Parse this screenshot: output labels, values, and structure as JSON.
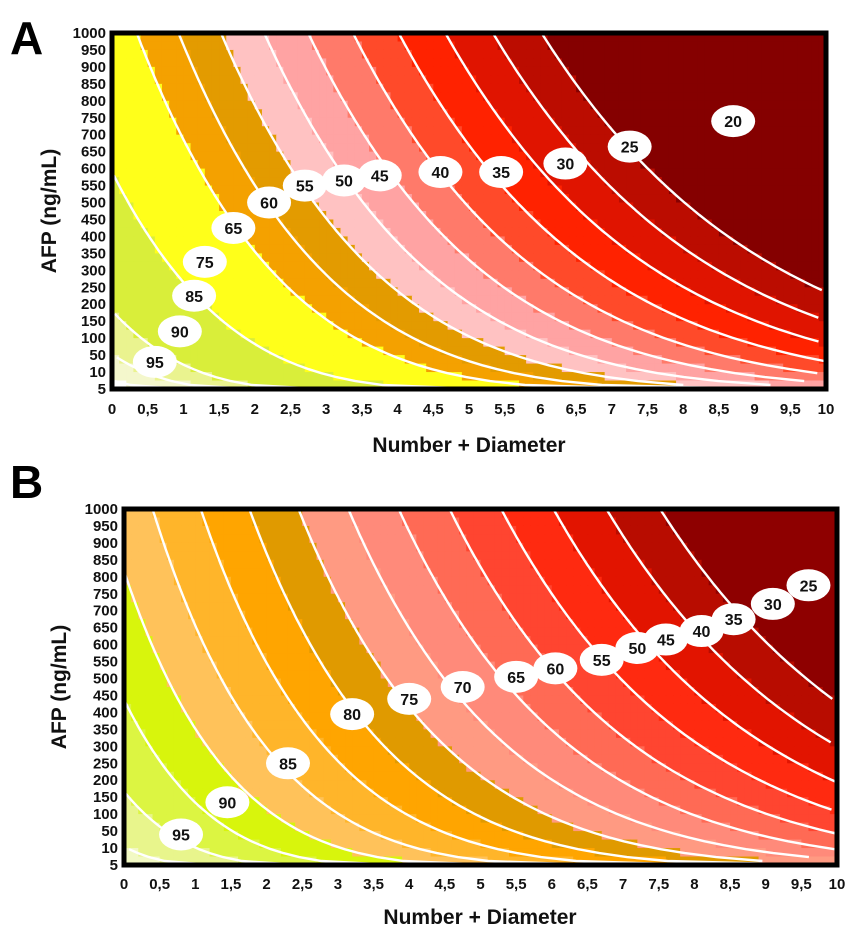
{
  "chart_data": [
    {
      "panel": "A",
      "type": "heatmap",
      "subtype": "contour",
      "xlabel": "Number + Diameter",
      "ylabel": "AFP (ng/mL)",
      "x_ticks": [
        "0",
        "0,5",
        "1",
        "1,5",
        "2",
        "2,5",
        "3",
        "3,5",
        "4",
        "4,5",
        "5",
        "5,5",
        "6",
        "6,5",
        "7",
        "7,5",
        "8",
        "8,5",
        "9",
        "9,5",
        "10"
      ],
      "y_ticks": [
        "5",
        "10",
        "50",
        "100",
        "150",
        "200",
        "250",
        "300",
        "350",
        "400",
        "450",
        "500",
        "550",
        "600",
        "650",
        "700",
        "750",
        "800",
        "850",
        "900",
        "950",
        "1000"
      ],
      "xlim": [
        0,
        10
      ],
      "y_categories": 22,
      "contour_levels": [
        95,
        90,
        85,
        75,
        65,
        60,
        55,
        50,
        45,
        40,
        35,
        30,
        25,
        20
      ],
      "contour_labels": [
        {
          "text": "95",
          "x": 0.6,
          "y": 1.6
        },
        {
          "text": "90",
          "x": 0.95,
          "y": 3.4
        },
        {
          "text": "85",
          "x": 1.15,
          "y": 5.5
        },
        {
          "text": "75",
          "x": 1.3,
          "y": 7.5
        },
        {
          "text": "65",
          "x": 1.7,
          "y": 9.5
        },
        {
          "text": "60",
          "x": 2.2,
          "y": 11.0
        },
        {
          "text": "55",
          "x": 2.7,
          "y": 12.0
        },
        {
          "text": "50",
          "x": 3.25,
          "y": 12.3
        },
        {
          "text": "45",
          "x": 3.75,
          "y": 12.6
        },
        {
          "text": "40",
          "x": 4.6,
          "y": 12.8
        },
        {
          "text": "35",
          "x": 5.45,
          "y": 12.8
        },
        {
          "text": "30",
          "x": 6.35,
          "y": 13.3
        },
        {
          "text": "25",
          "x": 7.25,
          "y": 14.3
        },
        {
          "text": "20",
          "x": 8.7,
          "y": 15.8
        }
      ],
      "band_colors": [
        "#ffffff",
        "#f4f7cc",
        "#eaf38f",
        "#d9ee3a",
        "#ffff1a",
        "#f4a100",
        "#e39b00",
        "#ffc2c2",
        "#ffa3a3",
        "#ff7a6a",
        "#ff4a2a",
        "#ff2200",
        "#e01400",
        "#bb0c00",
        "#850000"
      ]
    },
    {
      "panel": "B",
      "type": "heatmap",
      "subtype": "contour",
      "xlabel": "Number + Diameter",
      "ylabel": "AFP (ng/mL)",
      "x_ticks": [
        "0",
        "0,5",
        "1",
        "1,5",
        "2",
        "2,5",
        "3",
        "3,5",
        "4",
        "4,5",
        "5",
        "5,5",
        "6",
        "6,5",
        "7",
        "7,5",
        "8",
        "8,5",
        "9",
        "9,5",
        "10"
      ],
      "y_ticks": [
        "5",
        "10",
        "50",
        "100",
        "150",
        "200",
        "250",
        "300",
        "350",
        "400",
        "450",
        "500",
        "550",
        "600",
        "650",
        "700",
        "750",
        "800",
        "850",
        "900",
        "950",
        "1000"
      ],
      "xlim": [
        0,
        10
      ],
      "y_categories": 22,
      "contour_levels": [
        95,
        90,
        85,
        80,
        75,
        70,
        65,
        60,
        55,
        50,
        45,
        40,
        35,
        30,
        25
      ],
      "contour_labels": [
        {
          "text": "95",
          "x": 0.8,
          "y": 1.8
        },
        {
          "text": "90",
          "x": 1.45,
          "y": 3.7
        },
        {
          "text": "85",
          "x": 2.3,
          "y": 6.0
        },
        {
          "text": "80",
          "x": 3.2,
          "y": 8.9
        },
        {
          "text": "75",
          "x": 4.0,
          "y": 9.8
        },
        {
          "text": "70",
          "x": 4.75,
          "y": 10.5
        },
        {
          "text": "65",
          "x": 5.5,
          "y": 11.1
        },
        {
          "text": "60",
          "x": 6.05,
          "y": 11.6
        },
        {
          "text": "55",
          "x": 6.7,
          "y": 12.1
        },
        {
          "text": "50",
          "x": 7.2,
          "y": 12.8
        },
        {
          "text": "45",
          "x": 7.6,
          "y": 13.3
        },
        {
          "text": "40",
          "x": 8.1,
          "y": 13.8
        },
        {
          "text": "35",
          "x": 8.55,
          "y": 14.5
        },
        {
          "text": "30",
          "x": 9.1,
          "y": 15.4
        },
        {
          "text": "25",
          "x": 9.6,
          "y": 16.5
        }
      ],
      "band_colors": [
        "#f2f9c4",
        "#e8f58c",
        "#dcf542",
        "#d8f50c",
        "#ffc25a",
        "#ffb52a",
        "#ffa500",
        "#e09a00",
        "#ff9a82",
        "#ff8a7a",
        "#ff6a55",
        "#ff4530",
        "#ff2a10",
        "#e21400",
        "#b80c00",
        "#8e0000"
      ]
    }
  ]
}
